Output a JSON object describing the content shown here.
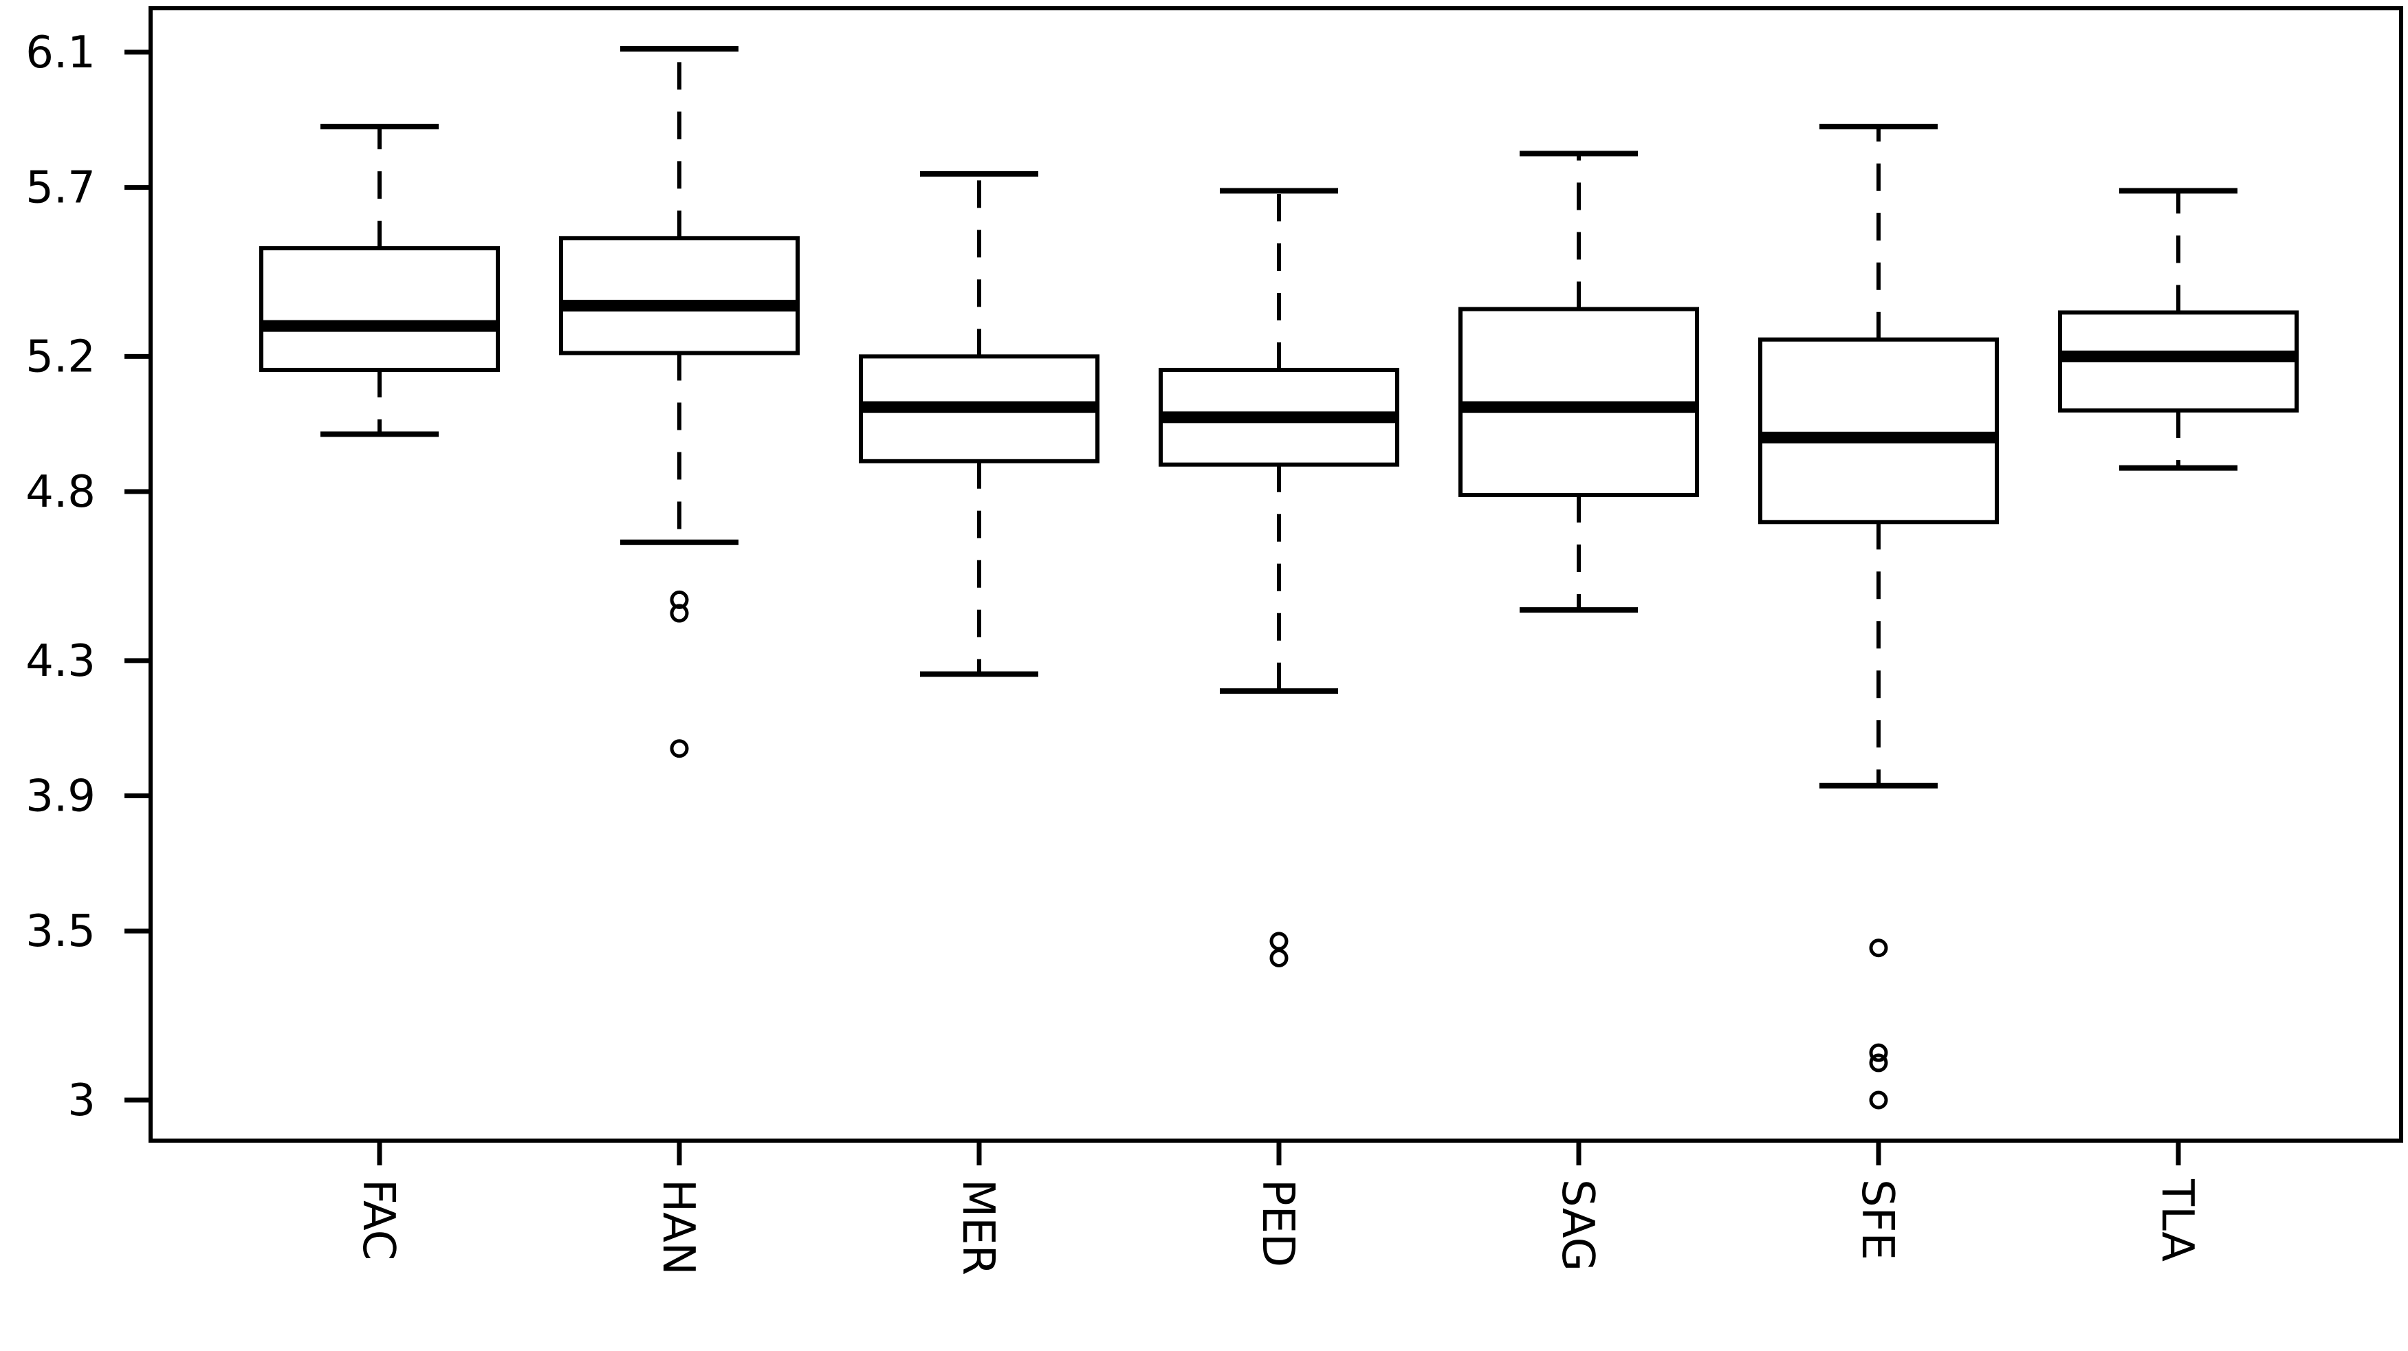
{
  "chart_data": {
    "type": "boxplot",
    "title": "",
    "xlabel": "",
    "ylabel": "",
    "grid": false,
    "legend": false,
    "colors": {
      "stroke": "#000000",
      "background": "#ffffff",
      "box_fill": "#ffffff"
    },
    "y_ticks": [
      6.1,
      5.7,
      5.2,
      4.8,
      4.3,
      3.9,
      3.5,
      3
    ],
    "y_tick_labels": [
      "6.1",
      "5.7",
      "5.2",
      "4.8",
      "4.3",
      "3.9",
      "3.5",
      "3"
    ],
    "ylim": [
      2.88,
      6.23
    ],
    "categories": [
      "FAC",
      "HAN",
      "MER",
      "PED",
      "SAG",
      "SFE",
      "TLA"
    ],
    "series": [
      {
        "name": "FAC",
        "whisker_low": 4.97,
        "q1": 5.16,
        "median": 5.29,
        "q3": 5.52,
        "whisker_high": 5.88,
        "outliers": []
      },
      {
        "name": "HAN",
        "whisker_low": 4.65,
        "q1": 5.21,
        "median": 5.35,
        "q3": 5.55,
        "whisker_high": 6.11,
        "outliers": [
          4.48,
          4.44,
          4.04
        ]
      },
      {
        "name": "MER",
        "whisker_low": 4.26,
        "q1": 4.89,
        "median": 5.05,
        "q3": 5.2,
        "whisker_high": 5.74,
        "outliers": []
      },
      {
        "name": "PED",
        "whisker_low": 4.21,
        "q1": 4.88,
        "median": 5.02,
        "q3": 5.16,
        "whisker_high": 5.69,
        "outliers": [
          3.47,
          3.42
        ]
      },
      {
        "name": "SAG",
        "whisker_low": 4.45,
        "q1": 4.79,
        "median": 5.05,
        "q3": 5.34,
        "whisker_high": 5.8,
        "outliers": []
      },
      {
        "name": "SFE",
        "whisker_low": 3.93,
        "q1": 4.71,
        "median": 4.96,
        "q3": 5.25,
        "whisker_high": 5.88,
        "outliers": [
          3.45,
          3.14,
          3.11,
          3.0
        ]
      },
      {
        "name": "TLA",
        "whisker_low": 4.87,
        "q1": 5.04,
        "median": 5.2,
        "q3": 5.33,
        "whisker_high": 5.69,
        "outliers": []
      }
    ]
  }
}
